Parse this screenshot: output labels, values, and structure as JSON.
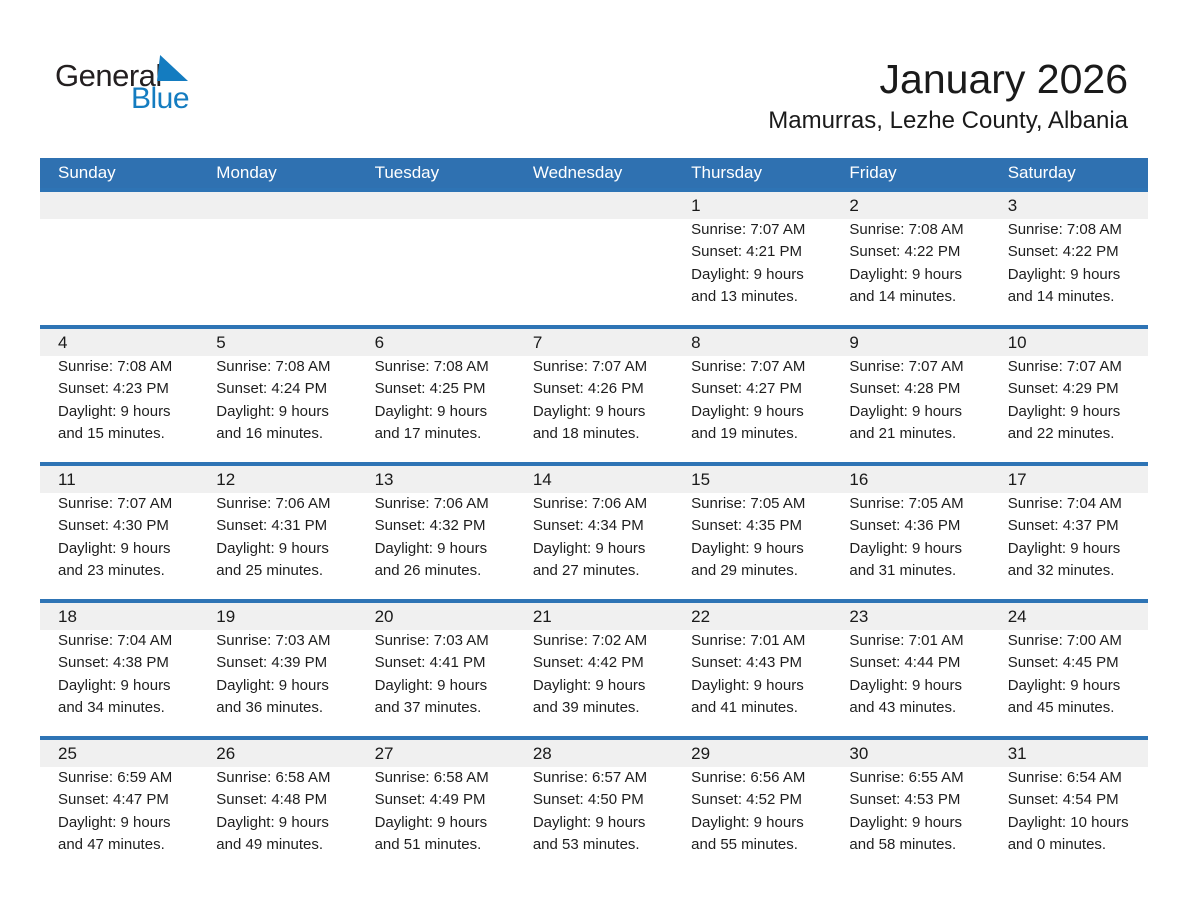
{
  "logo": {
    "general": "General",
    "blue": "Blue"
  },
  "header": {
    "title": "January 2026",
    "subtitle": "Mamurras, Lezhe County, Albania"
  },
  "colors": {
    "header_bg": "#2F71B1",
    "week_border": "#2E74B5",
    "day_band": "#F0F0F0",
    "logo_blue": "#147CC0"
  },
  "weekdays": [
    "Sunday",
    "Monday",
    "Tuesday",
    "Wednesday",
    "Thursday",
    "Friday",
    "Saturday"
  ],
  "weeks": [
    [
      null,
      null,
      null,
      null,
      {
        "day": "1",
        "sunrise": "Sunrise: 7:07 AM",
        "sunset": "Sunset: 4:21 PM",
        "daylight1": "Daylight: 9 hours",
        "daylight2": "and 13 minutes."
      },
      {
        "day": "2",
        "sunrise": "Sunrise: 7:08 AM",
        "sunset": "Sunset: 4:22 PM",
        "daylight1": "Daylight: 9 hours",
        "daylight2": "and 14 minutes."
      },
      {
        "day": "3",
        "sunrise": "Sunrise: 7:08 AM",
        "sunset": "Sunset: 4:22 PM",
        "daylight1": "Daylight: 9 hours",
        "daylight2": "and 14 minutes."
      }
    ],
    [
      {
        "day": "4",
        "sunrise": "Sunrise: 7:08 AM",
        "sunset": "Sunset: 4:23 PM",
        "daylight1": "Daylight: 9 hours",
        "daylight2": "and 15 minutes."
      },
      {
        "day": "5",
        "sunrise": "Sunrise: 7:08 AM",
        "sunset": "Sunset: 4:24 PM",
        "daylight1": "Daylight: 9 hours",
        "daylight2": "and 16 minutes."
      },
      {
        "day": "6",
        "sunrise": "Sunrise: 7:08 AM",
        "sunset": "Sunset: 4:25 PM",
        "daylight1": "Daylight: 9 hours",
        "daylight2": "and 17 minutes."
      },
      {
        "day": "7",
        "sunrise": "Sunrise: 7:07 AM",
        "sunset": "Sunset: 4:26 PM",
        "daylight1": "Daylight: 9 hours",
        "daylight2": "and 18 minutes."
      },
      {
        "day": "8",
        "sunrise": "Sunrise: 7:07 AM",
        "sunset": "Sunset: 4:27 PM",
        "daylight1": "Daylight: 9 hours",
        "daylight2": "and 19 minutes."
      },
      {
        "day": "9",
        "sunrise": "Sunrise: 7:07 AM",
        "sunset": "Sunset: 4:28 PM",
        "daylight1": "Daylight: 9 hours",
        "daylight2": "and 21 minutes."
      },
      {
        "day": "10",
        "sunrise": "Sunrise: 7:07 AM",
        "sunset": "Sunset: 4:29 PM",
        "daylight1": "Daylight: 9 hours",
        "daylight2": "and 22 minutes."
      }
    ],
    [
      {
        "day": "11",
        "sunrise": "Sunrise: 7:07 AM",
        "sunset": "Sunset: 4:30 PM",
        "daylight1": "Daylight: 9 hours",
        "daylight2": "and 23 minutes."
      },
      {
        "day": "12",
        "sunrise": "Sunrise: 7:06 AM",
        "sunset": "Sunset: 4:31 PM",
        "daylight1": "Daylight: 9 hours",
        "daylight2": "and 25 minutes."
      },
      {
        "day": "13",
        "sunrise": "Sunrise: 7:06 AM",
        "sunset": "Sunset: 4:32 PM",
        "daylight1": "Daylight: 9 hours",
        "daylight2": "and 26 minutes."
      },
      {
        "day": "14",
        "sunrise": "Sunrise: 7:06 AM",
        "sunset": "Sunset: 4:34 PM",
        "daylight1": "Daylight: 9 hours",
        "daylight2": "and 27 minutes."
      },
      {
        "day": "15",
        "sunrise": "Sunrise: 7:05 AM",
        "sunset": "Sunset: 4:35 PM",
        "daylight1": "Daylight: 9 hours",
        "daylight2": "and 29 minutes."
      },
      {
        "day": "16",
        "sunrise": "Sunrise: 7:05 AM",
        "sunset": "Sunset: 4:36 PM",
        "daylight1": "Daylight: 9 hours",
        "daylight2": "and 31 minutes."
      },
      {
        "day": "17",
        "sunrise": "Sunrise: 7:04 AM",
        "sunset": "Sunset: 4:37 PM",
        "daylight1": "Daylight: 9 hours",
        "daylight2": "and 32 minutes."
      }
    ],
    [
      {
        "day": "18",
        "sunrise": "Sunrise: 7:04 AM",
        "sunset": "Sunset: 4:38 PM",
        "daylight1": "Daylight: 9 hours",
        "daylight2": "and 34 minutes."
      },
      {
        "day": "19",
        "sunrise": "Sunrise: 7:03 AM",
        "sunset": "Sunset: 4:39 PM",
        "daylight1": "Daylight: 9 hours",
        "daylight2": "and 36 minutes."
      },
      {
        "day": "20",
        "sunrise": "Sunrise: 7:03 AM",
        "sunset": "Sunset: 4:41 PM",
        "daylight1": "Daylight: 9 hours",
        "daylight2": "and 37 minutes."
      },
      {
        "day": "21",
        "sunrise": "Sunrise: 7:02 AM",
        "sunset": "Sunset: 4:42 PM",
        "daylight1": "Daylight: 9 hours",
        "daylight2": "and 39 minutes."
      },
      {
        "day": "22",
        "sunrise": "Sunrise: 7:01 AM",
        "sunset": "Sunset: 4:43 PM",
        "daylight1": "Daylight: 9 hours",
        "daylight2": "and 41 minutes."
      },
      {
        "day": "23",
        "sunrise": "Sunrise: 7:01 AM",
        "sunset": "Sunset: 4:44 PM",
        "daylight1": "Daylight: 9 hours",
        "daylight2": "and 43 minutes."
      },
      {
        "day": "24",
        "sunrise": "Sunrise: 7:00 AM",
        "sunset": "Sunset: 4:45 PM",
        "daylight1": "Daylight: 9 hours",
        "daylight2": "and 45 minutes."
      }
    ],
    [
      {
        "day": "25",
        "sunrise": "Sunrise: 6:59 AM",
        "sunset": "Sunset: 4:47 PM",
        "daylight1": "Daylight: 9 hours",
        "daylight2": "and 47 minutes."
      },
      {
        "day": "26",
        "sunrise": "Sunrise: 6:58 AM",
        "sunset": "Sunset: 4:48 PM",
        "daylight1": "Daylight: 9 hours",
        "daylight2": "and 49 minutes."
      },
      {
        "day": "27",
        "sunrise": "Sunrise: 6:58 AM",
        "sunset": "Sunset: 4:49 PM",
        "daylight1": "Daylight: 9 hours",
        "daylight2": "and 51 minutes."
      },
      {
        "day": "28",
        "sunrise": "Sunrise: 6:57 AM",
        "sunset": "Sunset: 4:50 PM",
        "daylight1": "Daylight: 9 hours",
        "daylight2": "and 53 minutes."
      },
      {
        "day": "29",
        "sunrise": "Sunrise: 6:56 AM",
        "sunset": "Sunset: 4:52 PM",
        "daylight1": "Daylight: 9 hours",
        "daylight2": "and 55 minutes."
      },
      {
        "day": "30",
        "sunrise": "Sunrise: 6:55 AM",
        "sunset": "Sunset: 4:53 PM",
        "daylight1": "Daylight: 9 hours",
        "daylight2": "and 58 minutes."
      },
      {
        "day": "31",
        "sunrise": "Sunrise: 6:54 AM",
        "sunset": "Sunset: 4:54 PM",
        "daylight1": "Daylight: 10 hours",
        "daylight2": "and 0 minutes."
      }
    ]
  ]
}
